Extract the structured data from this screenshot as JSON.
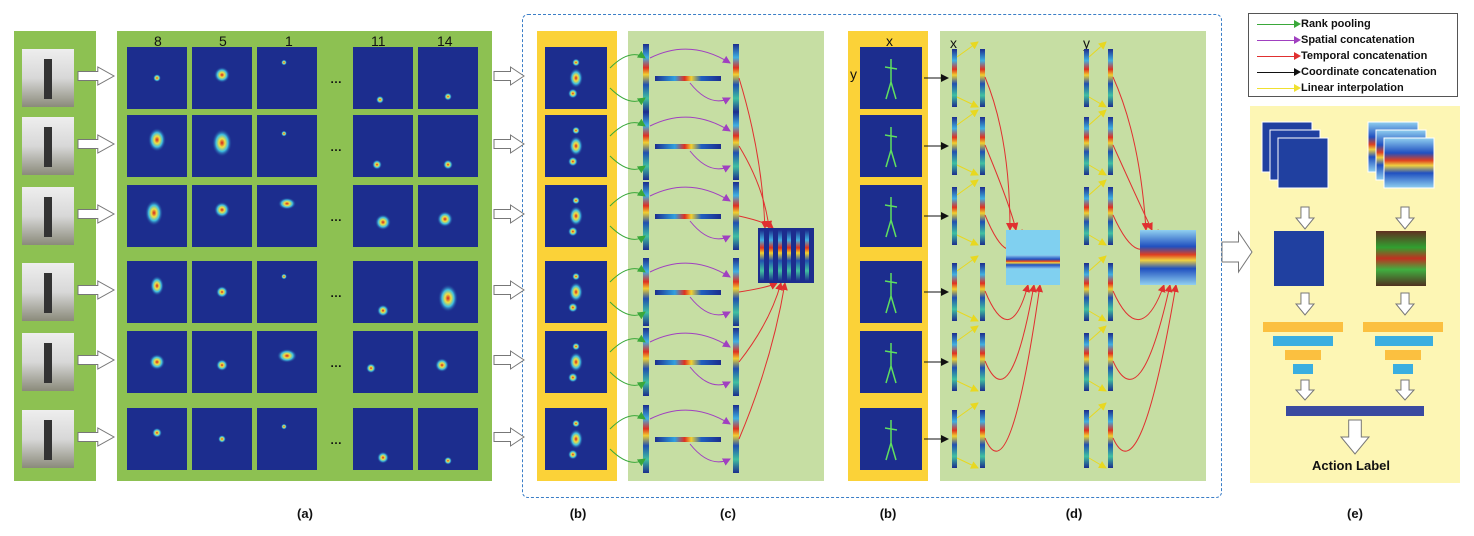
{
  "panel_a": {
    "frame_columns": [
      "8",
      "5",
      "1",
      "…",
      "11",
      "14"
    ],
    "ellipsis": "…",
    "caption": "(a)"
  },
  "panel_b_heatmaps": {
    "caption": "(b)"
  },
  "panel_c": {
    "caption": "(c)"
  },
  "panel_b_skeleton": {
    "x_label": "x",
    "y_label": "y",
    "caption": "(b)"
  },
  "panel_d": {
    "x_label": "x",
    "y_label": "y",
    "caption": "(d)"
  },
  "panel_e": {
    "output_label": "Action Label",
    "caption": "(e)"
  },
  "legend": {
    "items": [
      {
        "label": "Rank pooling",
        "color": "#3aa83a"
      },
      {
        "label": "Spatial concatenation",
        "color": "#a040c0"
      },
      {
        "label": "Temporal concatenation",
        "color": "#e03030"
      },
      {
        "label": "Coordinate concatenation",
        "color": "#111111"
      },
      {
        "label": "Linear interpolation",
        "color": "#f0e030"
      }
    ]
  },
  "colors": {
    "green_panel": "#8dc152",
    "light_green_panel": "#c6dea3",
    "yellow_panel": "#fbd238",
    "light_yellow_panel": "#fdf6b4",
    "heatmap_bg": "#1c2d8e",
    "dashed_border": "#3b7ec7"
  }
}
